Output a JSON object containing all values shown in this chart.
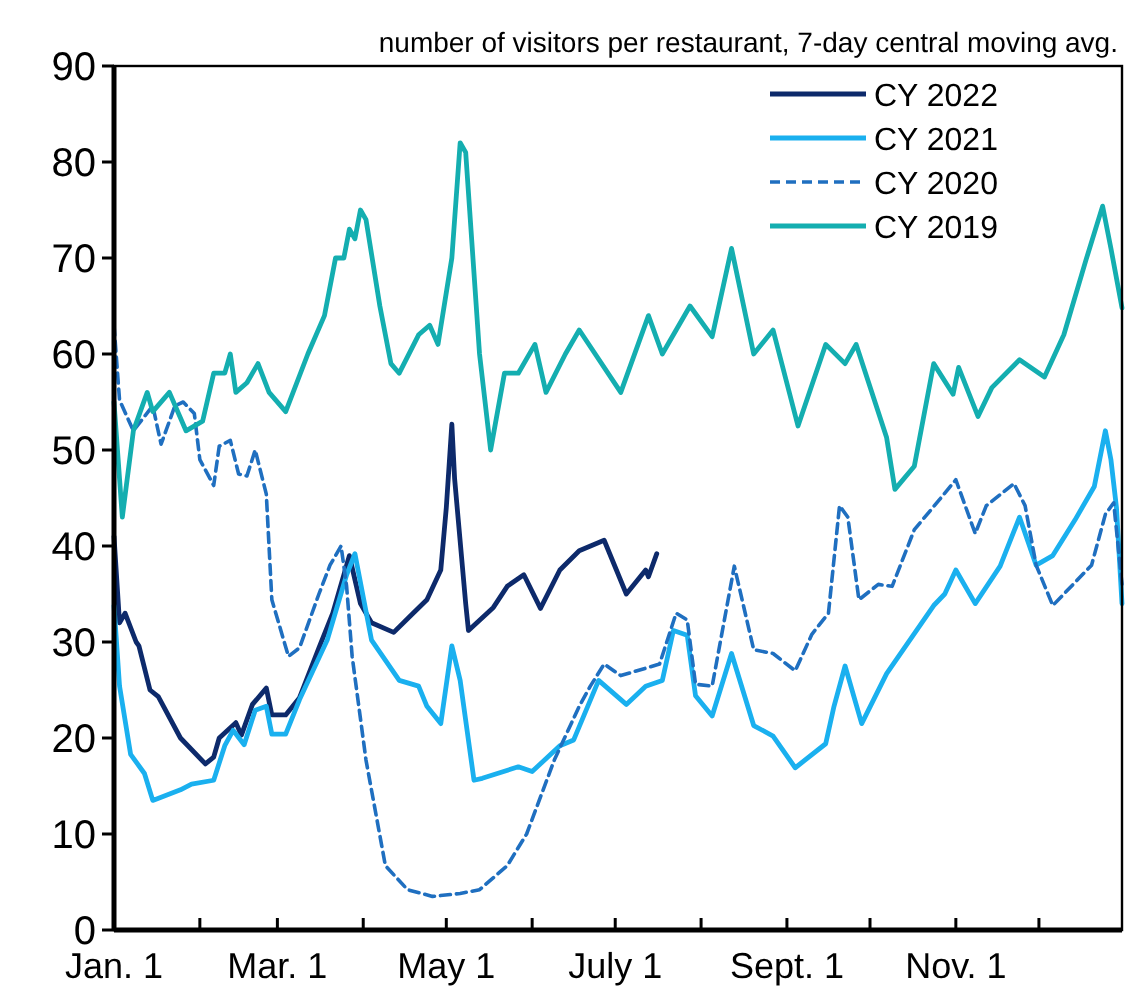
{
  "chart_data": {
    "type": "line",
    "title": "number of visitors per restaurant, 7-day central moving avg.",
    "xlim": [
      "--01-01",
      "--12-31"
    ],
    "xticks": [
      {
        "value": "--01-01",
        "label": "Jan. 1"
      },
      {
        "value": "--02-01",
        "label": null
      },
      {
        "value": "--03-01",
        "label": "Mar. 1"
      },
      {
        "value": "--04-01",
        "label": null
      },
      {
        "value": "--05-01",
        "label": "May 1"
      },
      {
        "value": "--06-01",
        "label": null
      },
      {
        "value": "--07-01",
        "label": "July 1"
      },
      {
        "value": "--08-01",
        "label": null
      },
      {
        "value": "--09-01",
        "label": "Sept. 1"
      },
      {
        "value": "--10-01",
        "label": null
      },
      {
        "value": "--11-01",
        "label": "Nov. 1"
      },
      {
        "value": "--12-01",
        "label": null
      }
    ],
    "ylim": [
      0,
      90
    ],
    "yticks": [
      0,
      10,
      20,
      30,
      40,
      50,
      60,
      70,
      80,
      90
    ],
    "grid": false,
    "legend": "top right",
    "marker": "none",
    "series": [
      {
        "name": "CY 2022",
        "color": "#0d2a6b",
        "line_style": "solid",
        "x": [
          "--01-01",
          "--01-03",
          "--01-05",
          "--01-09",
          "--01-10",
          "--01-14",
          "--01-17",
          "--01-25",
          "--02-03",
          "--02-06",
          "--02-08",
          "--02-14",
          "--02-16",
          "--02-20",
          "--02-25",
          "--02-27",
          "--03-04",
          "--03-09",
          "--03-16",
          "--03-21",
          "--03-25",
          "--03-27",
          "--03-31",
          "--04-04",
          "--04-12",
          "--04-19",
          "--04-24",
          "--04-29",
          "--05-01",
          "--05-03",
          "--05-04",
          "--05-08",
          "--05-09",
          "--05-18",
          "--05-23",
          "--05-29",
          "--06-04",
          "--06-11",
          "--06-18",
          "--06-27",
          "--07-05",
          "--07-12",
          "--07-13",
          "--07-16"
        ],
        "values": [
          41,
          32,
          33,
          30,
          29.6,
          25,
          24.3,
          20,
          17.3,
          18,
          20,
          21.6,
          20.3,
          23.5,
          25.2,
          22.4,
          22.4,
          24.2,
          29.4,
          33,
          37,
          39,
          34,
          32,
          31,
          33,
          34.4,
          37.5,
          44,
          52.7,
          47,
          34,
          31.2,
          33.6,
          35.8,
          37,
          33.5,
          37.5,
          39.5,
          40.6,
          35,
          37.5,
          36.8,
          39.2
        ]
      },
      {
        "name": "CY 2021",
        "color": "#1ab0ef",
        "line_style": "solid",
        "x": [
          "--01-01",
          "--01-03",
          "--01-07",
          "--01-12",
          "--01-15",
          "--01-25",
          "--01-29",
          "--02-06",
          "--02-10",
          "--02-13",
          "--02-17",
          "--02-21",
          "--02-25",
          "--02-27",
          "--03-04",
          "--03-09",
          "--03-19",
          "--03-26",
          "--03-29",
          "--04-04",
          "--04-14",
          "--04-21",
          "--04-24",
          "--04-29",
          "--05-03",
          "--05-06",
          "--05-11",
          "--05-14",
          "--05-27",
          "--06-01",
          "--06-11",
          "--06-16",
          "--06-25",
          "--07-05",
          "--07-12",
          "--07-18",
          "--07-22",
          "--07-27",
          "--07-30",
          "--08-05",
          "--08-12",
          "--08-20",
          "--08-27",
          "--09-04",
          "--09-15",
          "--09-18",
          "--09-22",
          "--09-28",
          "--10-07",
          "--10-24",
          "--10-28",
          "--11-01",
          "--11-08",
          "--11-17",
          "--11-24",
          "--11-30",
          "--12-06",
          "--12-14",
          "--12-21",
          "--12-25",
          "--12-27",
          "--12-29",
          "--12-31"
        ],
        "values": [
          33.8,
          25.4,
          18.3,
          16.3,
          13.5,
          14.6,
          15.2,
          15.6,
          19.2,
          20.8,
          19.3,
          22.9,
          23.3,
          20.4,
          20.4,
          24,
          30.2,
          37,
          39.2,
          30.2,
          26,
          25.4,
          23.3,
          21.5,
          29.6,
          26,
          15.6,
          15.8,
          17,
          16.5,
          19.2,
          19.8,
          26,
          23.5,
          25.4,
          26,
          31.2,
          30.7,
          24.4,
          22.3,
          28.8,
          21.3,
          20.2,
          16.9,
          19.4,
          23.3,
          27.5,
          21.5,
          26.7,
          33.8,
          35,
          37.5,
          34,
          37.9,
          43,
          38,
          39,
          42.7,
          46.2,
          52,
          49,
          44,
          34
        ]
      },
      {
        "name": "CY 2020",
        "color": "#1f6fc0",
        "line_style": "dashed",
        "x": [
          "--01-01",
          "--01-03",
          "--01-08",
          "--01-15",
          "--01-18",
          "--01-23",
          "--01-26",
          "--01-30",
          "--02-01",
          "--02-06",
          "--02-08",
          "--02-12",
          "--02-15",
          "--02-18",
          "--02-21",
          "--02-25",
          "--02-27",
          "--03-05",
          "--03-09",
          "--03-16",
          "--03-20",
          "--03-24",
          "--03-26",
          "--03-28",
          "--04-02",
          "--04-09",
          "--04-17",
          "--04-26",
          "--05-06",
          "--05-13",
          "--05-23",
          "--05-30",
          "--06-09",
          "--06-18",
          "--06-22",
          "--06-27",
          "--07-03",
          "--07-17",
          "--07-23",
          "--07-27",
          "--07-30",
          "--08-05",
          "--08-13",
          "--08-20",
          "--08-27",
          "--09-04",
          "--09-10",
          "--09-16",
          "--09-20",
          "--09-23",
          "--09-27",
          "--10-04",
          "--10-09",
          "--10-17",
          "--10-26",
          "--11-01",
          "--11-08",
          "--11-12",
          "--11-22",
          "--11-26",
          "--11-30",
          "--12-06",
          "--12-10",
          "--12-20",
          "--12-25",
          "--12-28",
          "--12-31"
        ],
        "values": [
          63,
          55.2,
          52,
          54.6,
          50.6,
          54.6,
          55,
          53.8,
          49,
          46.3,
          50.4,
          51,
          47.5,
          47.3,
          50,
          45.4,
          34.4,
          28.5,
          29.4,
          35,
          38,
          40,
          35.8,
          28.5,
          17.7,
          6.7,
          4.2,
          3.5,
          3.8,
          4.2,
          6.7,
          10,
          17.7,
          23.3,
          25.4,
          27.7,
          26.5,
          27.7,
          33,
          32.3,
          25.6,
          25.4,
          37.9,
          29.2,
          28.8,
          27,
          30.8,
          33,
          44.2,
          43,
          34.4,
          36,
          35.8,
          41.7,
          44.8,
          46.9,
          41.3,
          44.2,
          46.5,
          44.2,
          38,
          33.8,
          35,
          38,
          43.3,
          44.5,
          36
        ]
      },
      {
        "name": "CY 2019",
        "color": "#14aeb0",
        "line_style": "solid",
        "x": [
          "--01-01",
          "--01-04",
          "--01-08",
          "--01-13",
          "--01-15",
          "--01-21",
          "--01-27",
          "--02-02",
          "--02-06",
          "--02-10",
          "--02-12",
          "--02-14",
          "--02-18",
          "--02-22",
          "--02-26",
          "--03-04",
          "--03-12",
          "--03-18",
          "--03-22",
          "--03-25",
          "--03-27",
          "--03-29",
          "--03-31",
          "--04-02",
          "--04-07",
          "--04-11",
          "--04-14",
          "--04-21",
          "--04-25",
          "--04-28",
          "--05-03",
          "--05-06",
          "--05-08",
          "--05-13",
          "--05-17",
          "--05-22",
          "--05-27",
          "--06-02",
          "--06-06",
          "--06-13",
          "--06-18",
          "--07-03",
          "--07-13",
          "--07-18",
          "--07-28",
          "--08-05",
          "--08-12",
          "--08-20",
          "--08-27",
          "--09-05",
          "--09-15",
          "--09-22",
          "--09-26",
          "--10-07",
          "--10-10",
          "--10-17",
          "--10-24",
          "--10-31",
          "--11-02",
          "--11-09",
          "--11-14",
          "--11-24",
          "--12-03",
          "--12-10",
          "--12-18",
          "--12-24",
          "--12-27",
          "--12-31"
        ],
        "values": [
          55,
          43,
          52,
          56,
          54,
          56,
          52,
          53,
          58,
          58,
          60,
          56,
          57,
          59,
          56,
          54,
          60,
          64,
          70,
          70,
          73,
          72,
          75,
          74,
          65,
          59,
          58,
          62,
          63,
          61,
          70,
          82,
          81,
          60,
          50,
          58,
          58,
          61,
          56,
          60,
          62.5,
          56,
          64,
          60,
          65,
          61.8,
          71,
          60,
          62.5,
          52.5,
          61,
          59,
          61,
          51.3,
          45.9,
          48.3,
          59,
          55.8,
          58.6,
          53.5,
          56.5,
          59.4,
          57.6,
          62,
          69.8,
          75.4,
          71,
          64.8
        ]
      }
    ]
  }
}
